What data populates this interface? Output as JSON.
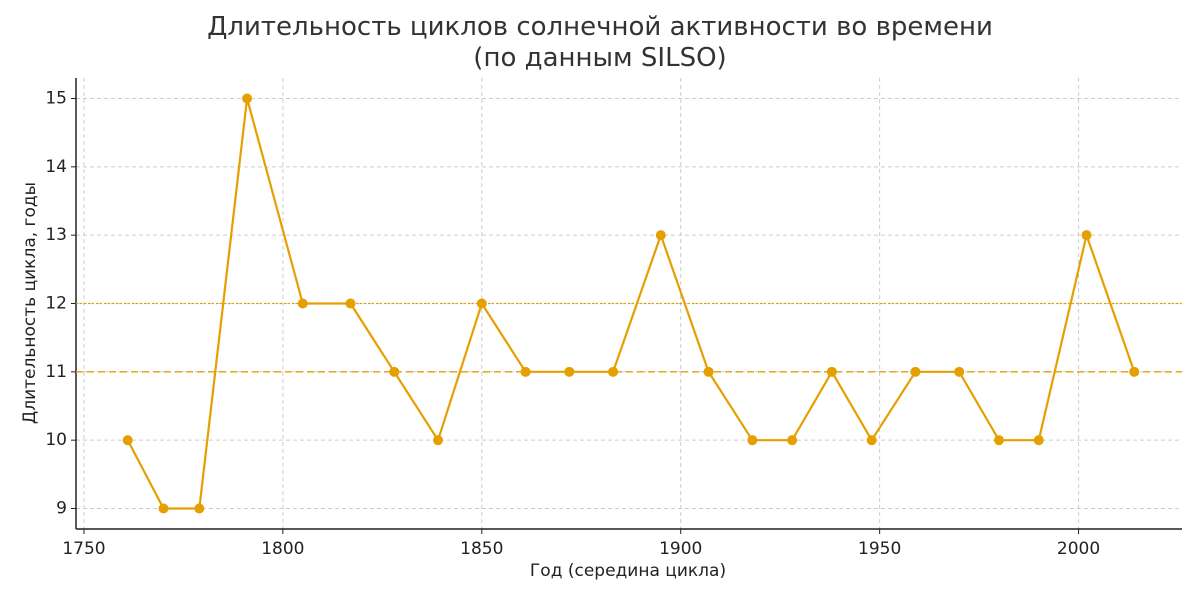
{
  "chart_data": {
    "type": "line",
    "title": "Длительность циклов солнечной активности во времени\n(по данным SILSO)",
    "x_label": "Год (середина цикла)",
    "y_label": "Длительность цикла, годы",
    "x": [
      1761,
      1770,
      1779,
      1791,
      1805,
      1817,
      1828,
      1839,
      1850,
      1861,
      1872,
      1883,
      1895,
      1907,
      1918,
      1928,
      1938,
      1948,
      1959,
      1970,
      1980,
      1990,
      2002,
      2014
    ],
    "series": [
      {
        "color": "#e69f00",
        "values": [
          10,
          9,
          9,
          15,
          12,
          12,
          11,
          10,
          12,
          11,
          11,
          11,
          13,
          11,
          10,
          10,
          11,
          10,
          11,
          11,
          10,
          10,
          13,
          11
        ]
      }
    ],
    "reference_lines": [
      {
        "value": 12,
        "style": "dotted",
        "color": "#e69f00"
      },
      {
        "value": 11,
        "style": "dashed",
        "color": "#e69f00"
      }
    ],
    "xlim": [
      1748,
      2026
    ],
    "ylim": [
      8.7,
      15.3
    ],
    "xticks": [
      1750,
      1800,
      1850,
      1900,
      1950,
      2000
    ],
    "yticks": [
      9,
      10,
      11,
      12,
      13,
      14,
      15
    ],
    "grid": true
  }
}
